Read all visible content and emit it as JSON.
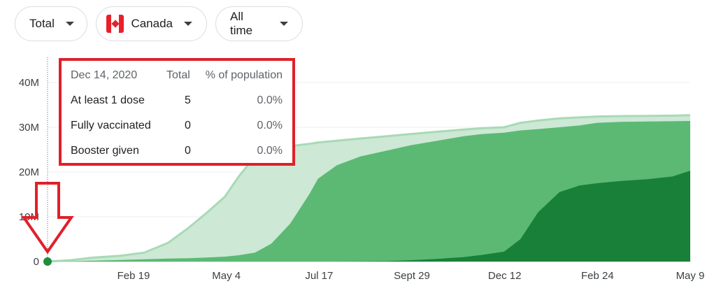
{
  "filters": {
    "metric": "Total",
    "country": "Canada",
    "range": "All time"
  },
  "icons": [
    "chevron-down-icon",
    "canada-flag-icon",
    "down-arrow-annotation"
  ],
  "colors": {
    "booster": "#188038",
    "fully": "#5bb974",
    "one_dose": "#cde8d5",
    "one_dose_line": "#a8dab5",
    "highlight": "#e0202a"
  },
  "tooltip": {
    "date": "Dec 14, 2020",
    "col_total": "Total",
    "col_pct": "% of population",
    "rows": [
      {
        "label": "At least 1 dose",
        "total": "5",
        "pct": "0.0%"
      },
      {
        "label": "Fully vaccinated",
        "total": "0",
        "pct": "0.0%"
      },
      {
        "label": "Booster given",
        "total": "0",
        "pct": "0.0%"
      }
    ]
  },
  "chart_data": {
    "type": "area",
    "title": "",
    "xlabel": "",
    "ylabel": "",
    "ylim": [
      0,
      40000000
    ],
    "ytick_labels": [
      "0",
      "10M",
      "20M",
      "30M",
      "40M"
    ],
    "xtick_labels": [
      "Feb 19",
      "May 4",
      "Jul 17",
      "Sept 29",
      "Dec 12",
      "Feb 24",
      "May 9"
    ],
    "x": [
      "2020-12-14",
      "2021-01-01",
      "2021-01-20",
      "2021-02-10",
      "2021-03-01",
      "2021-03-20",
      "2021-04-05",
      "2021-04-20",
      "2021-05-04",
      "2021-05-15",
      "2021-05-28",
      "2021-06-10",
      "2021-06-25",
      "2021-07-10",
      "2021-07-17",
      "2021-08-01",
      "2021-08-20",
      "2021-09-10",
      "2021-09-29",
      "2021-10-20",
      "2021-11-10",
      "2021-11-25",
      "2021-12-12",
      "2021-12-25",
      "2022-01-08",
      "2022-01-25",
      "2022-02-10",
      "2022-02-24",
      "2022-03-15",
      "2022-04-05",
      "2022-04-25",
      "2022-05-09"
    ],
    "series": [
      {
        "name": "At least 1 dose",
        "values": [
          0,
          300000,
          900000,
          1300000,
          2000000,
          4200000,
          7500000,
          11000000,
          14500000,
          19000000,
          23500000,
          25000000,
          25800000,
          26300000,
          26600000,
          27000000,
          27500000,
          28000000,
          28500000,
          29000000,
          29500000,
          29800000,
          30000000,
          31000000,
          31500000,
          32000000,
          32200000,
          32400000,
          32500000,
          32550000,
          32600000,
          32700000
        ]
      },
      {
        "name": "Fully vaccinated",
        "values": [
          0,
          50000,
          200000,
          350000,
          500000,
          650000,
          750000,
          900000,
          1100000,
          1400000,
          2000000,
          4000000,
          8500000,
          15000000,
          18500000,
          21500000,
          23500000,
          24800000,
          26000000,
          27000000,
          28000000,
          28500000,
          28800000,
          29300000,
          29600000,
          30000000,
          30400000,
          31000000,
          31200000,
          31300000,
          31350000,
          31400000
        ]
      },
      {
        "name": "Booster given",
        "values": [
          0,
          0,
          0,
          0,
          0,
          0,
          0,
          0,
          0,
          0,
          0,
          0,
          0,
          0,
          0,
          0,
          50000,
          100000,
          300000,
          600000,
          1000000,
          1500000,
          2200000,
          5000000,
          11000000,
          15500000,
          17000000,
          17500000,
          18000000,
          18400000,
          19000000,
          20300000
        ]
      }
    ],
    "highlight_index": 0,
    "grid": true,
    "legend": "none"
  }
}
